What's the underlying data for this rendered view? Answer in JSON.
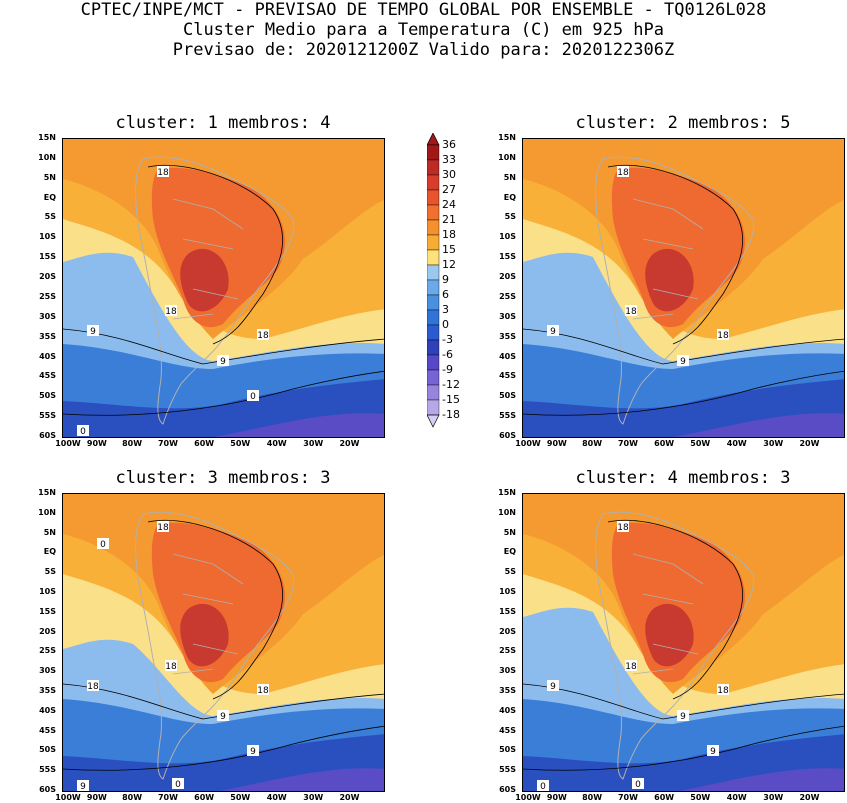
{
  "header": {
    "line1": "CPTEC/INPE/MCT - PREVISAO DE TEMPO GLOBAL POR ENSEMBLE - TQ0126L028",
    "line2": "Cluster Medio para a Temperatura (C) em 925 hPa",
    "line3": "Previsao de: 2020121200Z   Valido para: 2020122306Z"
  },
  "panels": [
    {
      "title": "cluster: 1   membros: 4"
    },
    {
      "title": "cluster: 2   membros: 5"
    },
    {
      "title": "cluster: 3   membros: 3"
    },
    {
      "title": "cluster: 4   membros: 3"
    }
  ],
  "lat_ticks": [
    "15N",
    "10N",
    "5N",
    "EQ",
    "5S",
    "10S",
    "15S",
    "20S",
    "25S",
    "30S",
    "35S",
    "40S",
    "45S",
    "50S",
    "55S",
    "60S"
  ],
  "lon_ticks": [
    "100W",
    "90W",
    "80W",
    "70W",
    "60W",
    "50W",
    "40W",
    "30W",
    "20W"
  ],
  "contour_labels": {
    "p1": [
      "18",
      "18",
      "18",
      "9",
      "9",
      "0",
      "0"
    ],
    "p2": [
      "18",
      "18",
      "18",
      "9",
      "9"
    ],
    "p3": [
      "18",
      "18",
      "18",
      "18",
      "9",
      "9",
      "9",
      "0",
      "0"
    ],
    "p4": [
      "18",
      "18",
      "18",
      "9",
      "9",
      "9",
      "0",
      "0"
    ]
  },
  "colorbar": {
    "labels": [
      "36",
      "33",
      "30",
      "27",
      "24",
      "21",
      "18",
      "15",
      "12",
      "9",
      "6",
      "3",
      "0",
      "-3",
      "-6",
      "-9",
      "-12",
      "-15",
      "-18"
    ],
    "colors": [
      "#a01818",
      "#c02a24",
      "#d83c2c",
      "#e8542c",
      "#f2702e",
      "#f6902c",
      "#f8ac34",
      "#fde27a",
      "#9cc8f0",
      "#6aaaea",
      "#4890e0",
      "#3074d8",
      "#2a5cd0",
      "#3040b8",
      "#5648c8",
      "#7664d4",
      "#9684de",
      "#b6a8e8",
      "#d8cef4"
    ]
  },
  "legend_colors": {
    "hot_core": "#c83a30",
    "warm": "#ee6a30",
    "mild": "#f59a30",
    "cool_ocean": "#f8b038",
    "pale": "#fbe08a",
    "light_blue": "#8cbcee",
    "blue": "#3a7ed8",
    "deep_blue": "#2a50c0",
    "purple": "#5a4cc4",
    "land_outline": "#b0b0b0"
  }
}
